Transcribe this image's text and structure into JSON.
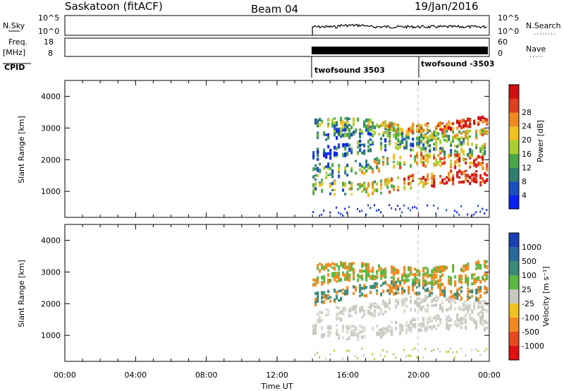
{
  "header": {
    "station": "Saskatoon (fitACF)",
    "beam": "Beam 04",
    "date": "19/Jan/2016"
  },
  "strip_labels": {
    "nsky": "N.Sky",
    "nsky_ticks": [
      "10^5",
      "10^0"
    ],
    "freq": "Freq.",
    "freq_unit": "[MHz]",
    "freq_ticks": [
      "18",
      "8"
    ],
    "cpid": "CPID",
    "nsearch": "N.Search",
    "nsearch_ticks": [
      "10^5",
      "10^0"
    ],
    "nave": "Nave",
    "nave_ticks": [
      "60",
      "0"
    ]
  },
  "cpid_segments": [
    {
      "label": "twofsound 3503",
      "start": "14:00",
      "end": "20:00"
    },
    {
      "label": "twofsound -3503",
      "start": "20:00",
      "end": "00:00"
    }
  ],
  "chart_data": [
    {
      "type": "heatmap",
      "quantity": "Power",
      "ylabel": "Slant Range [km]",
      "yticks": [
        1000,
        2000,
        3000,
        4000
      ],
      "ylim": [
        180,
        4500
      ],
      "colorbar_label": "Power [dB]",
      "colorbar_ticks": [
        "4",
        "8",
        "12",
        "16",
        "20",
        "24",
        "28"
      ],
      "colorbar_colors": [
        "#0a1ff0",
        "#1a4fc0",
        "#2f7f6e",
        "#4aa84a",
        "#a8d030",
        "#f0c020",
        "#f08a20",
        "#e04020",
        "#d01010"
      ],
      "data_start": "14:00"
    },
    {
      "type": "heatmap",
      "quantity": "Velocity",
      "ylabel": "Slant Range [km]",
      "yticks": [
        1000,
        2000,
        3000,
        4000
      ],
      "ylim": [
        180,
        4500
      ],
      "colorbar_label": "Velocity [m s⁻¹]",
      "colorbar_ticks": [
        "1000",
        "500",
        "100",
        "25",
        "-25",
        "-100",
        "-500",
        "-1000"
      ],
      "colorbar_colors": [
        "#1a3fb0",
        "#2a6a9a",
        "#3a8a7a",
        "#5ab840",
        "#c8c8c0",
        "#f0c020",
        "#f08a20",
        "#e84a20",
        "#e01010"
      ],
      "data_start": "14:00"
    }
  ],
  "x_axis": {
    "label": "Time UT",
    "ticks": [
      "00:00",
      "04:00",
      "08:00",
      "12:00",
      "16:00",
      "20:00",
      "00:00"
    ]
  }
}
